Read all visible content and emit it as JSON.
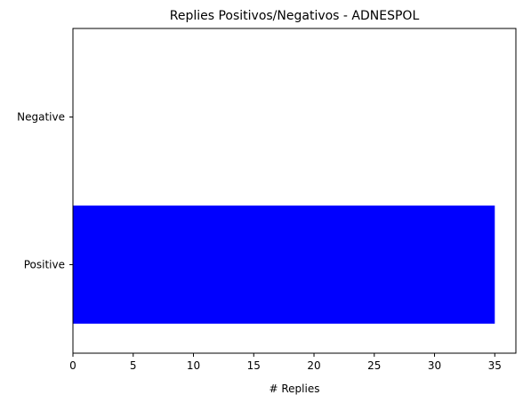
{
  "chart_data": {
    "type": "bar",
    "orientation": "horizontal",
    "title": "Replies Positivos/Negativos - ADNESPOL",
    "xlabel": "# Replies",
    "ylabel": "",
    "categories": [
      "Positive",
      "Negative"
    ],
    "values": [
      35,
      0
    ],
    "xlim": [
      0,
      36.75
    ],
    "xticks": [
      0,
      5,
      10,
      15,
      20,
      25,
      30,
      35
    ],
    "bar_color": "#0000ff",
    "grid": false,
    "legend": "none"
  }
}
